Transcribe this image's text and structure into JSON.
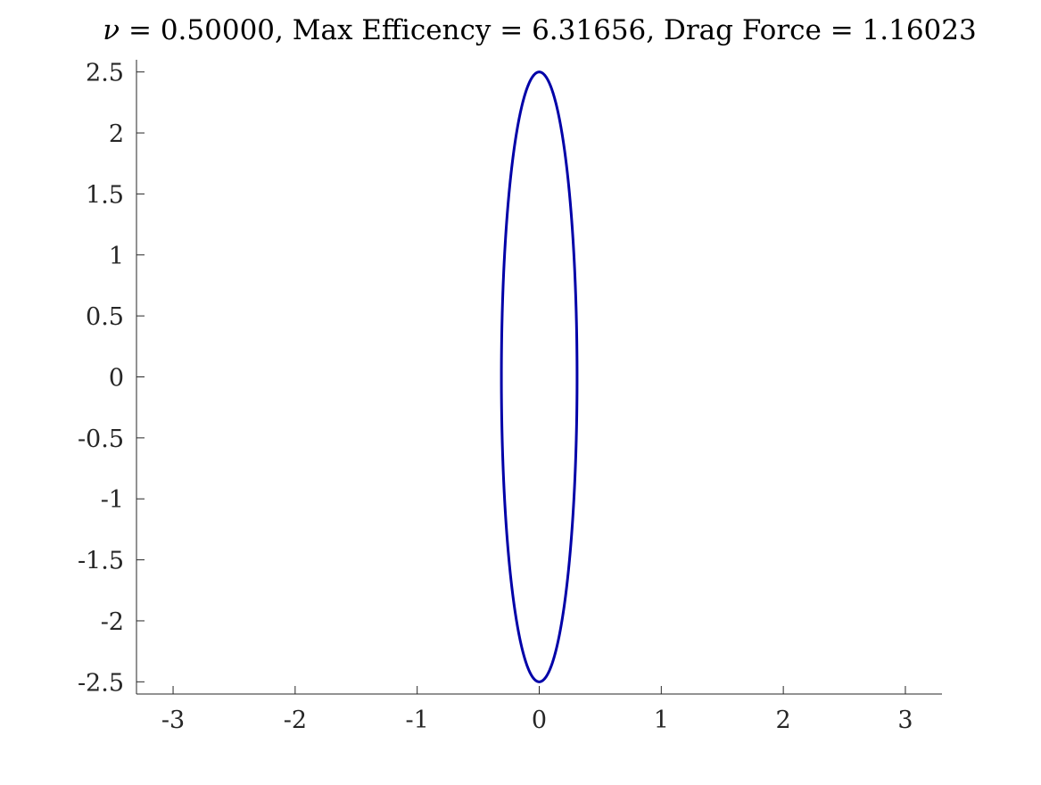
{
  "chart_data": {
    "type": "line",
    "title": {
      "symbol": "ν",
      "text": " = 0.50000, Max Efficency = 6.31656, Drag Force = 1.16023"
    },
    "xlabel": "",
    "ylabel": "",
    "xlim": [
      -3.3,
      3.3
    ],
    "ylim": [
      -2.6,
      2.6
    ],
    "x_ticks": [
      "-3",
      "-2",
      "-1",
      "0",
      "1",
      "2",
      "3"
    ],
    "y_ticks": [
      "-2.5",
      "-2",
      "-1.5",
      "-1",
      "-0.5",
      "0",
      "0.5",
      "1",
      "1.5",
      "2",
      "2.5"
    ],
    "grid": false,
    "legend": "none",
    "series": [
      {
        "shape": "ellipse",
        "center": [
          0,
          0
        ],
        "semi_axis_x": 0.31,
        "semi_axis_y": 2.5,
        "color": "#0000a8"
      }
    ],
    "axis_color": "#262626"
  }
}
